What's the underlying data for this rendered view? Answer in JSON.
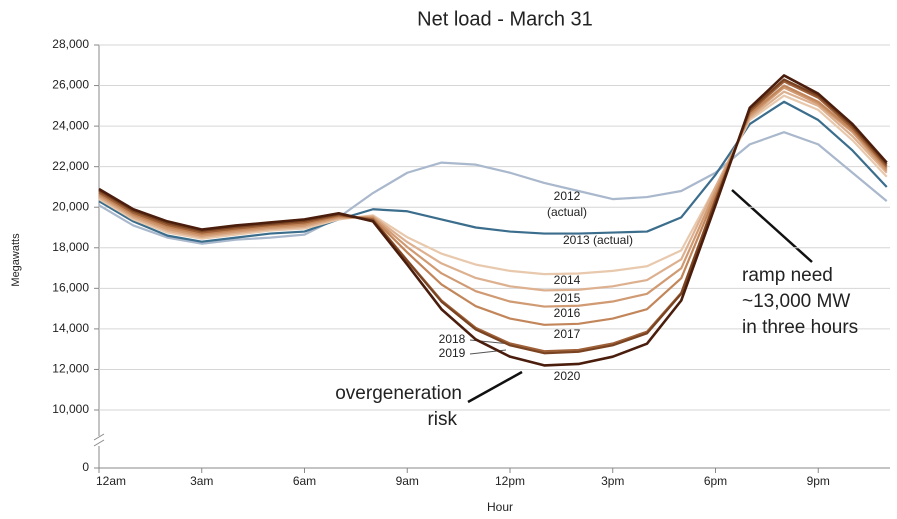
{
  "chart_data": {
    "type": "line",
    "title": "Net load - March 31",
    "x_label": "Hour",
    "y_label": "Megawatts",
    "categories": [
      "12am",
      null,
      null,
      "3am",
      null,
      null,
      "6am",
      null,
      null,
      "9am",
      null,
      null,
      "12pm",
      null,
      null,
      "3pm",
      null,
      null,
      "6pm",
      null,
      null,
      "9pm",
      null,
      null
    ],
    "ylim": [
      10000,
      28000
    ],
    "y_break": true,
    "grid": true,
    "yticks": [
      0,
      {
        "value": 10000,
        "label": "10,000"
      },
      {
        "value": 12000,
        "label": "12,000"
      },
      {
        "value": 14000,
        "label": "14,000"
      },
      {
        "value": 16000,
        "label": "16,000"
      },
      {
        "value": 18000,
        "label": "18,000"
      },
      {
        "value": 20000,
        "label": "20,000"
      },
      {
        "value": 22000,
        "label": "22,000"
      },
      {
        "value": 24000,
        "label": "24,000"
      },
      {
        "value": 26000,
        "label": "26,000"
      },
      {
        "value": 28000,
        "label": "28,000"
      }
    ],
    "series": [
      {
        "name": "2012",
        "color": "#a9b8cc",
        "values": [
          20100,
          19100,
          18500,
          18200,
          18400,
          18500,
          18650,
          19500,
          20700,
          21700,
          22200,
          22100,
          21700,
          21200,
          20800,
          20400,
          20500,
          20800,
          21700,
          23100,
          23700,
          23100,
          21700,
          20300
        ]
      },
      {
        "name": "2013 (actual)",
        "color": "#3b6d8c",
        "values": [
          20300,
          19300,
          18600,
          18300,
          18500,
          18700,
          18800,
          19400,
          19900,
          19800,
          19400,
          19000,
          18800,
          18700,
          18700,
          18750,
          18800,
          19500,
          21600,
          24100,
          25200,
          24300,
          22800,
          21000
        ]
      },
      {
        "name": "2014",
        "color": "#e8c9ad",
        "values": [
          20400,
          19400,
          18750,
          18450,
          18650,
          18850,
          18950,
          19400,
          19600,
          18520,
          17710,
          17170,
          16860,
          16700,
          16730,
          16860,
          17090,
          17870,
          21000,
          24300,
          25500,
          24800,
          23300,
          21500
        ]
      },
      {
        "name": "2015",
        "color": "#ddb08f",
        "values": [
          20480,
          19480,
          18840,
          18530,
          18730,
          18920,
          19030,
          19450,
          19550,
          18280,
          17230,
          16510,
          16100,
          15900,
          15930,
          16100,
          16410,
          17430,
          21000,
          24400,
          25700,
          25000,
          23500,
          21700
        ]
      },
      {
        "name": "2016",
        "color": "#d09a73",
        "values": [
          20570,
          19570,
          18930,
          18600,
          18800,
          18980,
          19100,
          19500,
          19500,
          18040,
          16740,
          15860,
          15350,
          15100,
          15140,
          15350,
          15730,
          16990,
          20800,
          24500,
          25900,
          25100,
          23700,
          21800
        ]
      },
      {
        "name": "2017",
        "color": "#c2865a",
        "values": [
          20650,
          19650,
          19030,
          18680,
          18880,
          19050,
          19180,
          19550,
          19450,
          17770,
          16190,
          15120,
          14510,
          14200,
          14250,
          14510,
          14970,
          16500,
          20600,
          24600,
          26000,
          25200,
          23800,
          21900
        ]
      },
      {
        "name": "2018",
        "color": "#9e6038",
        "values": [
          20730,
          19730,
          19120,
          18750,
          18950,
          19120,
          19250,
          19600,
          19400,
          17380,
          15400,
          14050,
          13280,
          12900,
          12960,
          13280,
          13860,
          15780,
          20400,
          24700,
          26200,
          25400,
          23900,
          22000
        ]
      },
      {
        "name": "2019",
        "color": "#7a4422",
        "values": [
          20820,
          19820,
          19210,
          18830,
          19030,
          19180,
          19330,
          19650,
          19350,
          17350,
          15340,
          13970,
          13190,
          12800,
          12870,
          13190,
          13780,
          15730,
          20300,
          24800,
          26300,
          25500,
          24000,
          22100
        ]
      },
      {
        "name": "2020",
        "color": "#4a1d0c",
        "values": [
          20900,
          19900,
          19300,
          18900,
          19100,
          19250,
          19400,
          19700,
          19300,
          17170,
          14970,
          13480,
          12630,
          12200,
          12270,
          12630,
          13270,
          15400,
          20100,
          24900,
          26500,
          25600,
          24100,
          22200
        ]
      }
    ],
    "annotations": [
      "(actual)",
      "ramp need",
      "~13,000 MW",
      "in three hours",
      "overgeneration",
      "risk"
    ]
  }
}
